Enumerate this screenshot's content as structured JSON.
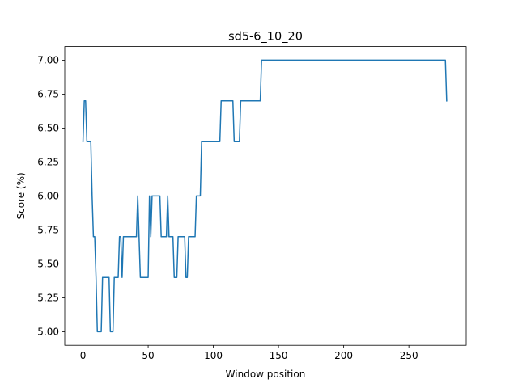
{
  "chart_data": {
    "type": "line",
    "title": "sd5-6_10_20",
    "xlabel": "Window position",
    "ylabel": "Score (%)",
    "xlim": [
      -14,
      294
    ],
    "ylim": [
      4.9,
      7.1
    ],
    "x_ticks": [
      0,
      50,
      100,
      150,
      200,
      250
    ],
    "y_ticks": [
      5.0,
      5.25,
      5.5,
      5.75,
      6.0,
      6.25,
      6.5,
      6.75,
      7.0
    ],
    "x_tick_labels": [
      "0",
      "50",
      "100",
      "150",
      "200",
      "250"
    ],
    "y_tick_labels": [
      "5.00",
      "5.25",
      "5.50",
      "5.75",
      "6.00",
      "6.25",
      "6.50",
      "6.75",
      "7.00"
    ],
    "grid": false,
    "series": [
      {
        "color": "#1f77b4",
        "x": [
          0,
          1,
          2,
          3,
          4,
          5,
          6,
          7,
          8,
          9,
          10,
          11,
          12,
          13,
          14,
          15,
          16,
          17,
          18,
          19,
          20,
          21,
          22,
          23,
          24,
          25,
          26,
          27,
          28,
          29,
          30,
          31,
          32,
          33,
          34,
          35,
          36,
          37,
          38,
          39,
          40,
          41,
          42,
          43,
          44,
          45,
          46,
          47,
          48,
          49,
          50,
          51,
          52,
          53,
          54,
          55,
          56,
          57,
          58,
          59,
          60,
          61,
          62,
          63,
          64,
          65,
          66,
          67,
          68,
          69,
          70,
          71,
          72,
          73,
          74,
          75,
          76,
          77,
          78,
          79,
          80,
          81,
          82,
          83,
          84,
          85,
          86,
          87,
          88,
          89,
          90,
          91,
          92,
          93,
          94,
          95,
          96,
          97,
          98,
          99,
          100,
          101,
          102,
          103,
          104,
          105,
          106,
          107,
          108,
          109,
          110,
          111,
          112,
          113,
          114,
          115,
          116,
          117,
          118,
          119,
          120,
          121,
          122,
          123,
          124,
          125,
          126,
          127,
          128,
          129,
          130,
          131,
          132,
          133,
          134,
          135,
          136,
          137,
          138,
          139,
          140,
          150,
          160,
          170,
          180,
          190,
          200,
          210,
          220,
          230,
          240,
          250,
          260,
          270,
          276,
          277,
          278,
          279
        ],
        "y": [
          6.4,
          6.7,
          6.7,
          6.4,
          6.4,
          6.4,
          6.4,
          6.0,
          5.7,
          5.7,
          5.4,
          5.0,
          5.0,
          5.0,
          5.0,
          5.4,
          5.4,
          5.4,
          5.4,
          5.4,
          5.4,
          5.0,
          5.0,
          5.0,
          5.4,
          5.4,
          5.4,
          5.4,
          5.7,
          5.7,
          5.4,
          5.7,
          5.7,
          5.7,
          5.7,
          5.7,
          5.7,
          5.7,
          5.7,
          5.7,
          5.7,
          5.7,
          6.0,
          5.7,
          5.4,
          5.4,
          5.4,
          5.4,
          5.4,
          5.4,
          5.4,
          6.0,
          5.7,
          6.0,
          6.0,
          6.0,
          6.0,
          6.0,
          6.0,
          6.0,
          5.7,
          5.7,
          5.7,
          5.7,
          5.7,
          6.0,
          5.7,
          5.7,
          5.7,
          5.7,
          5.4,
          5.4,
          5.4,
          5.7,
          5.7,
          5.7,
          5.7,
          5.7,
          5.7,
          5.4,
          5.4,
          5.7,
          5.7,
          5.7,
          5.7,
          5.7,
          5.7,
          6.0,
          6.0,
          6.0,
          6.0,
          6.4,
          6.4,
          6.4,
          6.4,
          6.4,
          6.4,
          6.4,
          6.4,
          6.4,
          6.4,
          6.4,
          6.4,
          6.4,
          6.4,
          6.4,
          6.7,
          6.7,
          6.7,
          6.7,
          6.7,
          6.7,
          6.7,
          6.7,
          6.7,
          6.7,
          6.4,
          6.4,
          6.4,
          6.4,
          6.4,
          6.7,
          6.7,
          6.7,
          6.7,
          6.7,
          6.7,
          6.7,
          6.7,
          6.7,
          6.7,
          6.7,
          6.7,
          6.7,
          6.7,
          6.7,
          6.7,
          7.0,
          7.0,
          7.0,
          7.0,
          7.0,
          7.0,
          7.0,
          7.0,
          7.0,
          7.0,
          7.0,
          7.0,
          7.0,
          7.0,
          7.0,
          7.0,
          7.0,
          7.0,
          7.0,
          7.0,
          6.7
        ]
      }
    ]
  }
}
